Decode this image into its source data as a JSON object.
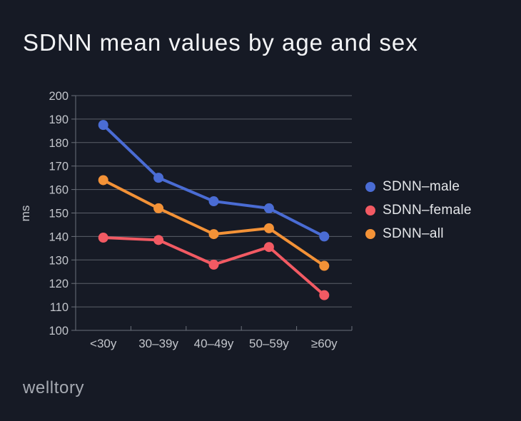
{
  "footer": {
    "logo_text": "welltory"
  },
  "colors": {
    "background": "#161A25",
    "grid": "#5B606A",
    "axis": "#6B707A",
    "tick_label": "#C2C5CB",
    "title_text": "#F3F4F6",
    "legend_text": "#E4E6E9",
    "logo_text": "#A6AAB2"
  },
  "chart_data": {
    "type": "line",
    "title": "SDNN mean values by age and sex",
    "categories": [
      "<30y",
      "30–39y",
      "40–49y",
      "50–59y",
      "≥60y"
    ],
    "xlabel": "",
    "ylabel": "ms",
    "ylim": [
      100,
      200
    ],
    "ytick_step": 10,
    "grid": true,
    "legend_position": "right",
    "marker": "circle",
    "series": [
      {
        "name": "SDNN–male",
        "color": "#4A6CD4",
        "values": [
          187.5,
          165,
          155,
          152,
          140
        ]
      },
      {
        "name": "SDNN–female",
        "color": "#F25A63",
        "values": [
          139.5,
          138.5,
          128,
          135.5,
          115
        ]
      },
      {
        "name": "SDNN–all",
        "color": "#F39237",
        "values": [
          164,
          152,
          141,
          143.5,
          127.5
        ]
      }
    ]
  }
}
